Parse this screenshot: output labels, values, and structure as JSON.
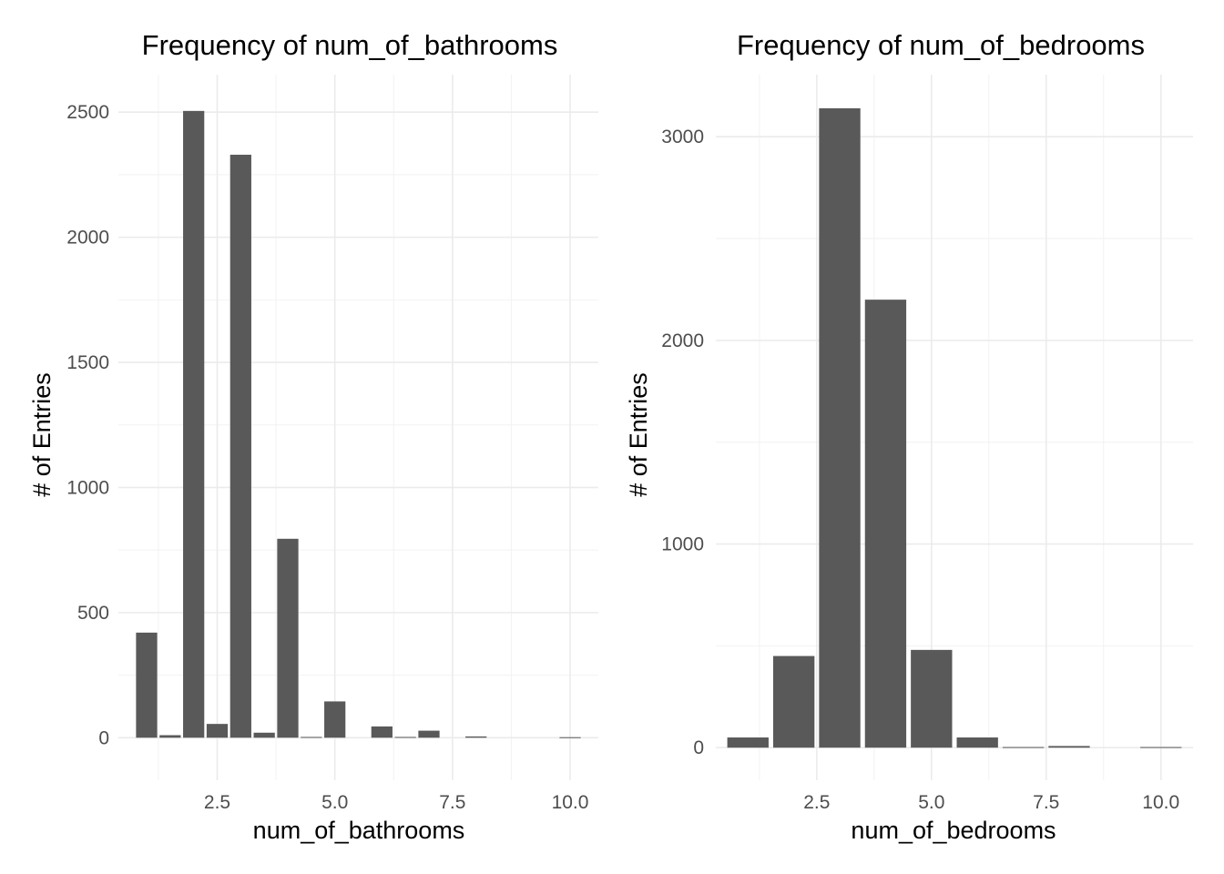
{
  "colors": {
    "bar": "#595959",
    "grid_major": "#ebebeb",
    "grid_minor": "#f2f2f2",
    "tick_text": "#4d4d4d",
    "text": "#000000"
  },
  "chart_data": [
    {
      "type": "bar",
      "title": "Frequency of num_of_bathrooms",
      "xlabel": "num_of_bathrooms",
      "ylabel": "# of Entries",
      "xlim": [
        0.4,
        10.6
      ],
      "ylim": [
        -170,
        2650
      ],
      "xticks": [
        2.5,
        5.0,
        7.5,
        10.0
      ],
      "xtick_labels": [
        "2.5",
        "5.0",
        "7.5",
        "10.0"
      ],
      "yticks": [
        0,
        500,
        1000,
        1500,
        2000,
        2500
      ],
      "ytick_labels": [
        "0",
        "500",
        "1000",
        "1500",
        "2000",
        "2500"
      ],
      "bar_width": 0.45,
      "grid": true,
      "legend": "none",
      "x": [
        1.0,
        1.5,
        2.0,
        2.5,
        3.0,
        3.5,
        4.0,
        4.5,
        5.0,
        6.0,
        6.5,
        7.0,
        8.0,
        10.0
      ],
      "values": [
        420,
        10,
        2505,
        55,
        2330,
        20,
        795,
        3,
        145,
        45,
        3,
        28,
        5,
        2
      ]
    },
    {
      "type": "bar",
      "title": "Frequency of num_of_bedrooms",
      "xlabel": "num_of_bedrooms",
      "ylabel": "# of Entries",
      "xlim": [
        0.3,
        10.7
      ],
      "ylim": [
        -160,
        3305
      ],
      "xticks": [
        2.5,
        5.0,
        7.5,
        10.0
      ],
      "xtick_labels": [
        "2.5",
        "5.0",
        "7.5",
        "10.0"
      ],
      "yticks": [
        0,
        1000,
        2000,
        3000
      ],
      "ytick_labels": [
        "0",
        "1000",
        "2000",
        "3000"
      ],
      "bar_width": 0.9,
      "grid": true,
      "legend": "none",
      "x": [
        1,
        2,
        3,
        4,
        5,
        6,
        7,
        8,
        10
      ],
      "values": [
        50,
        450,
        3140,
        2200,
        480,
        50,
        3,
        8,
        3
      ]
    }
  ]
}
